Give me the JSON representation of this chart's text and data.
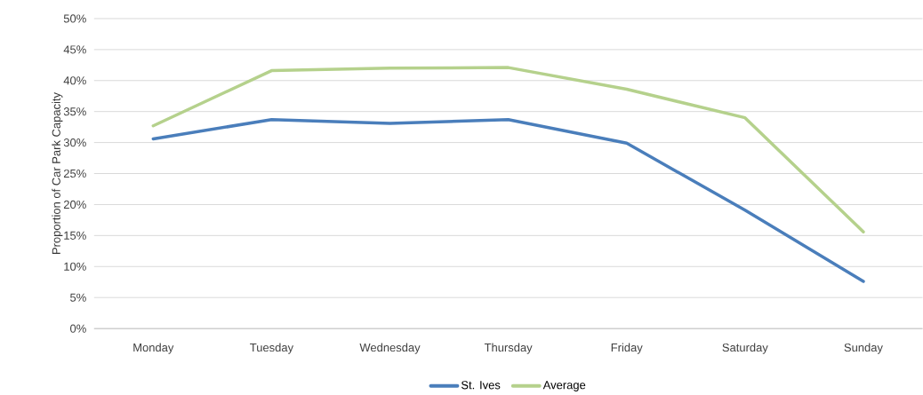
{
  "chart_data": {
    "type": "line",
    "ylabel": "Proportion of Car Park Capacity",
    "categories": [
      "Monday",
      "Tuesday",
      "Wednesday",
      "Thursday",
      "Friday",
      "Saturday",
      "Sunday"
    ],
    "series": [
      {
        "name": "St. Ives",
        "color": "#4a7ebb",
        "values": [
          30.6,
          33.7,
          33.1,
          33.7,
          29.9,
          19.1,
          7.6
        ]
      },
      {
        "name": "Average",
        "color": "#b5d18c",
        "values": [
          32.7,
          41.6,
          42.0,
          42.1,
          38.6,
          34.0,
          15.6
        ]
      }
    ],
    "ylim": [
      0,
      50
    ],
    "yticks": [
      {
        "value": 0,
        "label": "0%"
      },
      {
        "value": 5,
        "label": "5%"
      },
      {
        "value": 10,
        "label": "10%"
      },
      {
        "value": 15,
        "label": "15%"
      },
      {
        "value": 20,
        "label": "20%"
      },
      {
        "value": 25,
        "label": "25%"
      },
      {
        "value": 30,
        "label": "30%"
      },
      {
        "value": 35,
        "label": "35%"
      },
      {
        "value": 40,
        "label": "40%"
      },
      {
        "value": 45,
        "label": "45%"
      },
      {
        "value": 50,
        "label": "50%"
      }
    ],
    "grid": "y",
    "legend": "bottom",
    "marker": "none",
    "line_style": "solid"
  }
}
